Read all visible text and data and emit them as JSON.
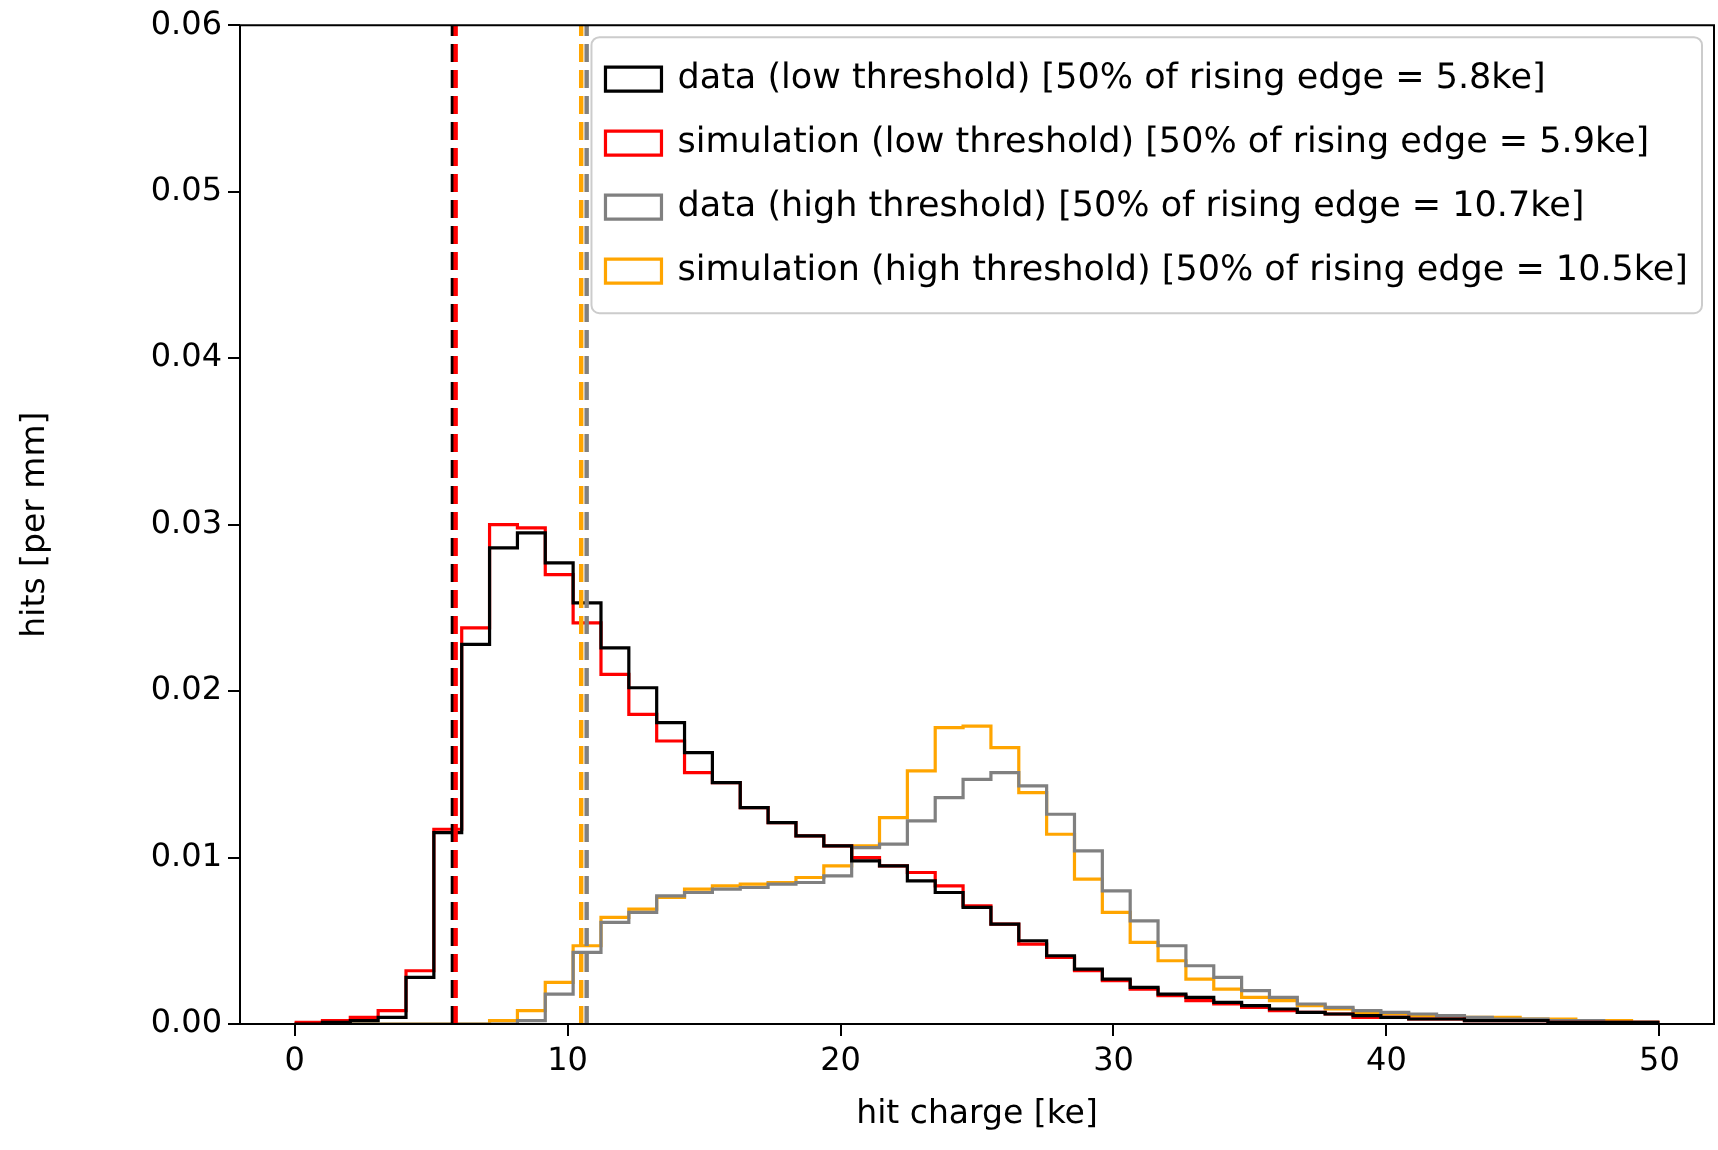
{
  "chart_data": {
    "type": "histogram",
    "xlabel": "hit charge [ke]",
    "ylabel": "hits [per mm]",
    "bins": [
      0,
      1.0204,
      2.0408,
      3.0612,
      4.0816,
      5.102,
      6.1224,
      7.1429,
      8.1633,
      9.1837,
      10.2041,
      11.2245,
      12.2449,
      13.2653,
      14.2857,
      15.3061,
      16.3265,
      17.3469,
      18.3673,
      19.3878,
      20.4082,
      21.4286,
      22.449,
      23.4694,
      24.4898,
      25.5102,
      26.5306,
      27.551,
      28.5714,
      29.5918,
      30.6122,
      31.6327,
      32.6531,
      33.6735,
      34.6939,
      35.7143,
      36.7347,
      37.7551,
      38.7755,
      39.7959,
      40.8163,
      41.8367,
      42.8571,
      43.8776,
      44.898,
      45.9184,
      46.9388,
      47.9592,
      48.9796,
      50
    ],
    "series": [
      {
        "name": "data (low threshold) [50% of rising edge = 5.8ke]",
        "color": "#000000",
        "values": [
          0,
          0.0001,
          0.0002,
          0.0004,
          0.0028,
          0.0115,
          0.0228,
          0.0286,
          0.0295,
          0.0277,
          0.0253,
          0.0226,
          0.0202,
          0.0181,
          0.0163,
          0.0145,
          0.013,
          0.0121,
          0.0113,
          0.0107,
          0.0098,
          0.0095,
          0.0086,
          0.0079,
          0.007,
          0.006,
          0.005,
          0.0041,
          0.0033,
          0.0027,
          0.0022,
          0.0018,
          0.0016,
          0.0013,
          0.0011,
          0.0009,
          0.0007,
          0.0006,
          0.0005,
          0.0004,
          0.0003,
          0.0003,
          0.0002,
          0.0002,
          0.0002,
          0.0001,
          0.0001,
          0.0001,
          0.0001
        ]
      },
      {
        "name": "simulation (low threshold) [50% of rising edge = 5.9ke]",
        "color": "#ff0000",
        "values": [
          0.0001,
          0.0002,
          0.0004,
          0.0008,
          0.0032,
          0.0117,
          0.0238,
          0.03,
          0.0298,
          0.027,
          0.0241,
          0.021,
          0.0186,
          0.017,
          0.0151,
          0.0145,
          0.013,
          0.0121,
          0.0113,
          0.0107,
          0.01,
          0.0095,
          0.0091,
          0.0083,
          0.0071,
          0.006,
          0.0048,
          0.004,
          0.0032,
          0.0026,
          0.0021,
          0.0017,
          0.0014,
          0.0012,
          0.001,
          0.0008,
          0.0007,
          0.0006,
          0.0004,
          0.0004,
          0.0003,
          0.0003,
          0.0002,
          0.0002,
          0.0002,
          0.0001,
          0.0001,
          0.0001,
          0.0001
        ]
      },
      {
        "name": "data (high threshold) [50% of rising edge = 10.7ke]",
        "color": "#808080",
        "values": [
          0,
          0,
          0,
          0,
          0,
          0,
          0,
          0,
          0.0002,
          0.0018,
          0.0043,
          0.0061,
          0.0067,
          0.0077,
          0.0079,
          0.0081,
          0.0082,
          0.0084,
          0.0085,
          0.0089,
          0.0106,
          0.0108,
          0.0122,
          0.0136,
          0.0147,
          0.0151,
          0.0143,
          0.0126,
          0.0104,
          0.008,
          0.0062,
          0.0047,
          0.0035,
          0.0028,
          0.002,
          0.0016,
          0.0012,
          0.001,
          0.0008,
          0.0007,
          0.0006,
          0.0005,
          0.0004,
          0.0003,
          0.0003,
          0.0002,
          0.0002,
          0.0001,
          0.0001
        ]
      },
      {
        "name": "simulation (high threshold) [50% of rising edge = 10.5ke]",
        "color": "#ffa500",
        "values": [
          0,
          0,
          0,
          0,
          0,
          0,
          0,
          0.0002,
          0.0008,
          0.0025,
          0.0047,
          0.0064,
          0.0069,
          0.0076,
          0.0081,
          0.0083,
          0.0084,
          0.0085,
          0.0088,
          0.0095,
          0.0107,
          0.0124,
          0.0152,
          0.0178,
          0.0179,
          0.0166,
          0.0139,
          0.0114,
          0.0087,
          0.0067,
          0.0049,
          0.0038,
          0.0027,
          0.0021,
          0.0016,
          0.0014,
          0.0011,
          0.0009,
          0.0007,
          0.0006,
          0.0005,
          0.0005,
          0.0004,
          0.0004,
          0.0003,
          0.0003,
          0.0002,
          0.0002,
          0.0001
        ]
      }
    ],
    "ref_lines": [
      {
        "axis": "x",
        "value": 5.8,
        "color": "#000000",
        "line_style": "dashed"
      },
      {
        "axis": "x",
        "value": 5.9,
        "color": "#ff0000",
        "line_style": "dashed"
      },
      {
        "axis": "x",
        "value": 10.5,
        "color": "#ffa500",
        "line_style": "dashed"
      },
      {
        "axis": "x",
        "value": 10.7,
        "color": "#808080",
        "line_style": "dashed"
      }
    ],
    "xlim": [
      -2,
      52
    ],
    "xticks": [
      0,
      10,
      20,
      30,
      40,
      50
    ],
    "ylim": [
      0,
      0.06
    ],
    "yticks": [
      {
        "value": 0,
        "label": "0.00"
      },
      {
        "value": 0.01,
        "label": "0.01"
      },
      {
        "value": 0.02,
        "label": "0.02"
      },
      {
        "value": 0.03,
        "label": "0.03"
      },
      {
        "value": 0.04,
        "label": "0.04"
      },
      {
        "value": 0.05,
        "label": "0.05"
      },
      {
        "value": 0.06,
        "label": "0.06"
      }
    ],
    "grid": false,
    "legend": "top right"
  }
}
